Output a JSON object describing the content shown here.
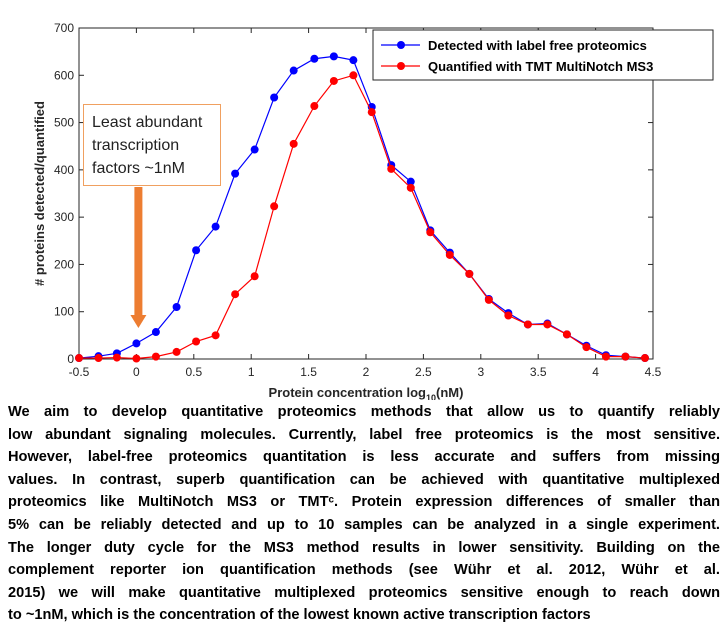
{
  "chart_data": {
    "type": "line",
    "xlabel": "Protein concentration log",
    "xlabel_sub": "10",
    "xlabel_unit": "(nM)",
    "ylabel": "# proteins detected/quantified",
    "xlim": [
      -0.5,
      4.5
    ],
    "ylim": [
      0,
      700
    ],
    "xticks": [
      "-0.5",
      "0",
      "0.5",
      "1",
      "1.5",
      "2",
      "2.5",
      "3",
      "3.5",
      "4",
      "4.5"
    ],
    "yticks": [
      "0",
      "100",
      "200",
      "300",
      "400",
      "500",
      "600",
      "700"
    ],
    "grid": false,
    "legend_position": "top-right",
    "x": [
      -0.5,
      -0.33,
      -0.17,
      0,
      0.17,
      0.35,
      0.52,
      0.69,
      0.86,
      1.03,
      1.2,
      1.37,
      1.55,
      1.72,
      1.89,
      2.05,
      2.22,
      2.39,
      2.56,
      2.73,
      2.9,
      3.07,
      3.24,
      3.41,
      3.58,
      3.75,
      3.92,
      4.09,
      4.26,
      4.43
    ],
    "series": [
      {
        "name": "Detected with label free proteomics",
        "color": "#0000ff",
        "values": [
          2,
          6,
          12,
          33,
          57,
          110,
          230,
          280,
          392,
          443,
          553,
          610,
          635,
          640,
          632,
          533,
          410,
          375,
          272,
          225,
          180,
          127,
          97,
          73,
          75,
          52,
          28,
          8,
          5,
          2
        ]
      },
      {
        "name": "Quantified with TMT MultiNotch MS3",
        "color": "#ff0000",
        "values": [
          2,
          2,
          3,
          1,
          5,
          15,
          37,
          50,
          137,
          175,
          323,
          455,
          535,
          588,
          600,
          522,
          402,
          362,
          268,
          220,
          180,
          125,
          92,
          73,
          73,
          52,
          25,
          5,
          5,
          2
        ]
      }
    ],
    "annotation": {
      "lines": [
        "Least abundant",
        "transcription",
        "factors ~1nM"
      ],
      "arrow_x": 0,
      "arrow_color": "#ed7d31"
    }
  },
  "paragraph": [
    "We aim to develop quantitative proteomics methods that allow us to quantify reliably",
    "low abundant signaling molecules. Currently, label free proteomics is the most sensitive.",
    "However, label-free proteomics quantitation is less accurate and suffers from missing",
    "values. In contrast, superb quantification can be achieved with quantitative multiplexed",
    "proteomics like MultiNotch MS3 or TMTᶜ. Protein expression differences of smaller than",
    "5% can be reliably detected and up to 10 samples can be analyzed in a single experiment.",
    "The longer duty cycle for the MS3 method results in lower sensitivity.  Building on the",
    "complement reporter ion quantification methods (see Wühr et al. 2012, Wühr et al.",
    "2015) we will make quantitative multiplexed proteomics sensitive enough to reach down",
    "to ~1nM, which is the concentration of the lowest known active transcription factors"
  ]
}
